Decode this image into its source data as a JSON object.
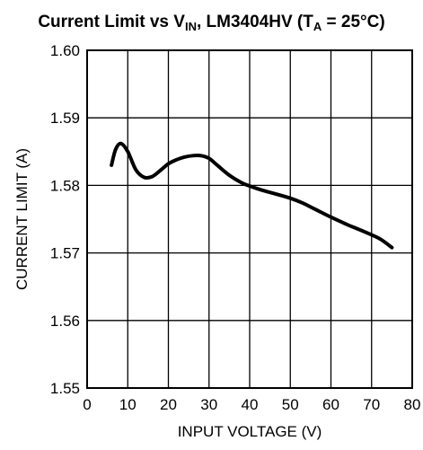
{
  "chart_data": {
    "type": "line",
    "title_parts": {
      "prefix": "Current Limit vs V",
      "sub1": "IN",
      "middle": ", LM3404HV (T",
      "sub2": "A",
      "suffix": " = 25°C)"
    },
    "xlabel": "INPUT VOLTAGE (V)",
    "ylabel": "CURRENT LIMIT (A)",
    "xlim": [
      0,
      80
    ],
    "ylim": [
      1.55,
      1.6
    ],
    "x_ticks": [
      "0",
      "10",
      "20",
      "30",
      "40",
      "50",
      "60",
      "70",
      "80"
    ],
    "y_ticks": [
      "1.55",
      "1.56",
      "1.57",
      "1.58",
      "1.59",
      "1.60"
    ],
    "grid": true,
    "series": [
      {
        "color": "#000000",
        "x": [
          6,
          7,
          8.3,
          10,
          12,
          14,
          16,
          18,
          20,
          22,
          24,
          26,
          28,
          30,
          32,
          35,
          38,
          40,
          43,
          46,
          50,
          53,
          56,
          60,
          64,
          68,
          72,
          75
        ],
        "y": [
          1.583,
          1.5853,
          1.5862,
          1.585,
          1.5823,
          1.5812,
          1.5813,
          1.5822,
          1.5832,
          1.5838,
          1.5842,
          1.5844,
          1.5844,
          1.584,
          1.583,
          1.5815,
          1.5804,
          1.5799,
          1.5793,
          1.5788,
          1.5781,
          1.5774,
          1.5765,
          1.5753,
          1.5742,
          1.5732,
          1.5721,
          1.5708
        ]
      }
    ]
  }
}
